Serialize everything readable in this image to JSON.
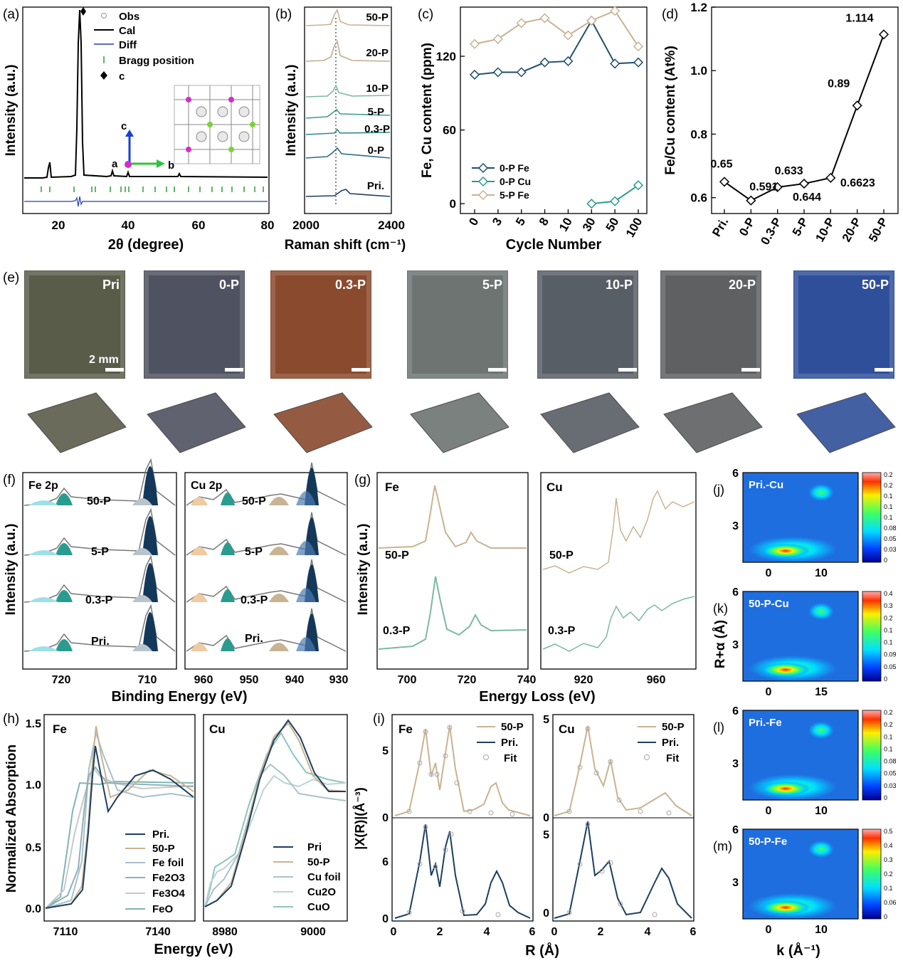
{
  "figure": {
    "panels": {
      "a": {
        "letter": "(a)",
        "ylabel": "Intensity (a.u.)",
        "xlabel": "2θ (degree)",
        "xticks": [
          "20",
          "40",
          "60",
          "80"
        ],
        "legend": [
          "Obs",
          "Cal",
          "Diff",
          "Bragg position",
          "c"
        ],
        "axis_letters": [
          "a",
          "b",
          "c"
        ]
      },
      "b": {
        "letter": "(b)",
        "ylabel": "Intensity (a.u.)",
        "xlabel": "Raman shift (cm⁻¹)",
        "xticks": [
          "2000",
          "2400"
        ],
        "samples": [
          "50-P",
          "20-P",
          "10-P",
          "5-P",
          "0.3-P",
          "0-P",
          "Pri."
        ]
      },
      "d": {
        "letter": "(d)"
      },
      "e": {
        "letter": "(e)",
        "labels": [
          "Pri",
          "0-P",
          "0.3-P",
          "5-P",
          "10-P",
          "20-P",
          "50-P"
        ],
        "scale": "2 mm",
        "tile_colors": [
          "#5a5c4a",
          "#4f5260",
          "#8a4a2e",
          "#6d7472",
          "#585e66",
          "#5e6062",
          "#2f4f9a"
        ]
      },
      "f": {
        "letter": "(f)",
        "ylabel": "Intensity (a.u.)",
        "xlabel": "Binding Energy (eV)",
        "fe_title": "Fe 2p",
        "cu_title": "Cu 2p",
        "samples": [
          "50-P",
          "5-P",
          "0.3-P",
          "Pri."
        ],
        "fe_ticks": [
          "720",
          "710"
        ],
        "cu_ticks": [
          "960",
          "950",
          "940",
          "930"
        ]
      },
      "g": {
        "letter": "(g)",
        "ylabel": "Intensity (a.u.)",
        "xlabel": "Energy Loss (eV)",
        "fe_title": "Fe",
        "cu_title": "Cu",
        "samples": [
          "50-P",
          "0.3-P"
        ],
        "fe_ticks": [
          "700",
          "720",
          "740"
        ],
        "cu_ticks": [
          "920",
          "960"
        ]
      },
      "h": {
        "letter": "(h)",
        "ylabel": "Normalized Absorption",
        "xlabel": "Energy (eV)",
        "fe_title": "Fe",
        "cu_title": "Cu",
        "yticks": [
          "0.0",
          "0.5",
          "1.0",
          "1.5"
        ],
        "fe_ticks": [
          "7110",
          "7140"
        ],
        "cu_ticks": [
          "8980",
          "9000"
        ],
        "fe_legend": [
          "Pri.",
          "50-P",
          "Fe foil",
          "Fe2O3",
          "Fe3O4",
          "FeO"
        ],
        "cu_legend": [
          "Pri",
          "50-P",
          "Cu foil",
          "Cu2O",
          "CuO"
        ]
      },
      "i": {
        "letter": "(i)",
        "ylabel": "|X(R)|(Å⁻³)",
        "xlabel": "R (Å)",
        "fe_title": "Fe",
        "cu_title": "Cu",
        "legend": [
          "50-P",
          "Pri.",
          "Fit"
        ],
        "fe_yticks": [
          "0",
          "5",
          "0",
          "6"
        ],
        "cu_yticks": [
          "0",
          "5",
          "0",
          "5"
        ],
        "xticks": [
          "0",
          "2",
          "4",
          "6"
        ]
      },
      "wt": {
        "ylabel": "R+α (Å)",
        "xlabel": "k (Å⁻¹)",
        "maps": [
          {
            "letter": "(j)",
            "title": "Pri.-Cu",
            "xticks": [
              "0",
              "10"
            ],
            "yticks": [
              "6",
              "3"
            ],
            "scale": [
              "0.2",
              "0.2",
              "0.1",
              "0.1",
              "0.1",
              "0.08",
              "0.05",
              "0.03",
              "0"
            ]
          },
          {
            "letter": "(k)",
            "title": "50-P-Cu",
            "xticks": [
              "0",
              "15"
            ],
            "yticks": [
              "6",
              "3"
            ],
            "scale": [
              "0.4",
              "0.3",
              "0.2",
              "0.1",
              "0.1",
              "0.09",
              "0.05",
              "0"
            ]
          },
          {
            "letter": "(l)",
            "title": "Pri.-Fe",
            "xticks": [
              "0",
              "10"
            ],
            "yticks": [
              "6",
              "3"
            ],
            "scale": [
              "0.2",
              "0.2",
              "0.1",
              "0.1",
              "0.08",
              "0.05",
              "0.03",
              "0"
            ]
          },
          {
            "letter": "(m)",
            "title": "50-P-Fe",
            "xticks": [
              "0",
              "10"
            ],
            "yticks": [
              "6",
              "3"
            ],
            "scale": [
              "0.5",
              "0.4",
              "0.3",
              "0.2",
              "0.1",
              "0.06",
              "0"
            ]
          }
        ]
      }
    }
  },
  "chart_data": [
    {
      "id": "c",
      "letter": "(c)",
      "type": "line",
      "xlabel": "Cycle Number",
      "ylabel": "Fe, Cu content (ppm)",
      "categories": [
        "0",
        "3",
        "5",
        "8",
        "10",
        "30",
        "50",
        "100"
      ],
      "ylim": [
        -8,
        160
      ],
      "yticks": [
        0,
        60,
        120
      ],
      "series": [
        {
          "name": "0-P Fe",
          "color": "#1f4e6b",
          "values": [
            105,
            107,
            107,
            115,
            116,
            149,
            114,
            115
          ]
        },
        {
          "name": "0-P Cu",
          "color": "#2a9c8f",
          "values": [
            null,
            null,
            null,
            null,
            null,
            0,
            2,
            15
          ]
        },
        {
          "name": "5-P Fe",
          "color": "#c8b393",
          "values": [
            130,
            134,
            147,
            151,
            137,
            149,
            157,
            128
          ]
        }
      ]
    },
    {
      "id": "d",
      "type": "line",
      "xlabel": "",
      "ylabel": "Fe/Cu content (At%)",
      "categories": [
        "Pri.",
        "0-P",
        "0.3-P",
        "5-P",
        "10-P",
        "20-P",
        "50-P"
      ],
      "ylim": [
        0.55,
        1.2
      ],
      "yticks": [
        0.6,
        0.8,
        1.0,
        1.2
      ],
      "series": [
        {
          "name": "Fe/Cu",
          "color": "#000000",
          "values": [
            0.65,
            0.591,
            0.633,
            0.644,
            0.6623,
            0.89,
            1.114
          ]
        }
      ],
      "data_labels": [
        "0.65",
        "0.591",
        "0.633",
        "0.644",
        "0.6623",
        "0.89",
        "1.114"
      ]
    }
  ]
}
